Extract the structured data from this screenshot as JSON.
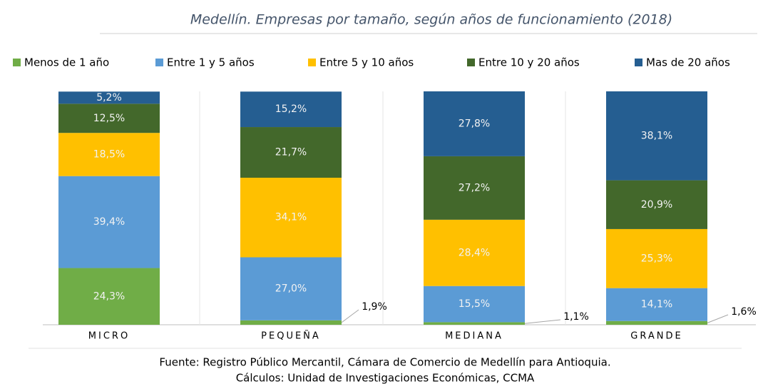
{
  "chart_data": {
    "type": "stacked_bar",
    "title": "Medellín. Empresas por tamaño, según años de funcionamiento (2018)",
    "categories": [
      "MICRO",
      "PEQUEÑA",
      "MEDIANA",
      "GRANDE"
    ],
    "series": [
      {
        "name": "Menos de 1 año",
        "color": "#70ad47",
        "values": [
          24.3,
          1.9,
          1.1,
          1.6
        ],
        "value_labels": [
          "24,3%",
          "1,9%",
          "1,1%",
          "1,6%"
        ]
      },
      {
        "name": "Entre 1 y 5 años",
        "color": "#5b9bd5",
        "values": [
          39.4,
          27.0,
          15.5,
          14.1
        ],
        "value_labels": [
          "39,4%",
          "27,0%",
          "15,5%",
          "14,1%"
        ]
      },
      {
        "name": "Entre 5 y 10 años",
        "color": "#ffc000",
        "values": [
          18.5,
          34.1,
          28.4,
          25.3
        ],
        "value_labels": [
          "18,5%",
          "34,1%",
          "28,4%",
          "25,3%"
        ]
      },
      {
        "name": "Entre 10 y 20 años",
        "color": "#43682b",
        "values": [
          12.5,
          21.7,
          27.2,
          20.9
        ],
        "value_labels": [
          "12,5%",
          "21,7%",
          "27,2%",
          "20,9%"
        ]
      },
      {
        "name": "Mas de 20 años",
        "color": "#255e91",
        "values": [
          5.2,
          15.2,
          27.8,
          38.1
        ],
        "value_labels": [
          "5,2%",
          "15,2%",
          "27,8%",
          "38,1%"
        ]
      }
    ],
    "ylim": [
      0,
      100
    ],
    "legend": "top",
    "notes": [
      "Fuente: Registro Público Mercantil, Cámara de Comercio de Medellín para Antioquia.",
      "Cálculos: Unidad de Investigaciones Económicas, CCMA"
    ]
  }
}
